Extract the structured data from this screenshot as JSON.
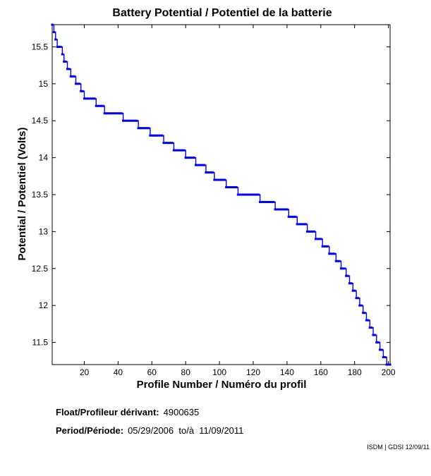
{
  "chart_data": {
    "type": "line",
    "title": "Battery Potential / Potentiel de la batterie",
    "xlabel": "Profile Number / Numéro du profil",
    "ylabel": "Potential / Potentiel (Volts)",
    "xlim": [
      1,
      201
    ],
    "ylim": [
      11.2,
      15.8
    ],
    "xticks": [
      20,
      40,
      60,
      80,
      100,
      120,
      140,
      160,
      180,
      200
    ],
    "yticks": [
      11.5,
      12,
      12.5,
      13,
      13.5,
      14,
      14.5,
      15,
      15.5
    ],
    "grid": false,
    "line_color": "#0000ff",
    "steps": [
      [
        1,
        2,
        15.8
      ],
      [
        2,
        3,
        15.7
      ],
      [
        3,
        4,
        15.6
      ],
      [
        4,
        7,
        15.5
      ],
      [
        7,
        8,
        15.4
      ],
      [
        8,
        10,
        15.3
      ],
      [
        10,
        12,
        15.2
      ],
      [
        12,
        15,
        15.1
      ],
      [
        15,
        18,
        15.0
      ],
      [
        18,
        20,
        14.9
      ],
      [
        20,
        27,
        14.8
      ],
      [
        27,
        32,
        14.7
      ],
      [
        32,
        43,
        14.6
      ],
      [
        43,
        52,
        14.5
      ],
      [
        52,
        59,
        14.4
      ],
      [
        59,
        67,
        14.3
      ],
      [
        67,
        73,
        14.2
      ],
      [
        73,
        80,
        14.1
      ],
      [
        80,
        86,
        14.0
      ],
      [
        86,
        92,
        13.9
      ],
      [
        92,
        97,
        13.8
      ],
      [
        97,
        104,
        13.7
      ],
      [
        104,
        111,
        13.6
      ],
      [
        111,
        124,
        13.5
      ],
      [
        124,
        133,
        13.4
      ],
      [
        133,
        141,
        13.3
      ],
      [
        141,
        146,
        13.2
      ],
      [
        146,
        152,
        13.1
      ],
      [
        152,
        157,
        13.0
      ],
      [
        157,
        161,
        12.9
      ],
      [
        161,
        165,
        12.8
      ],
      [
        165,
        169,
        12.7
      ],
      [
        169,
        172,
        12.6
      ],
      [
        172,
        175,
        12.5
      ],
      [
        175,
        177,
        12.4
      ],
      [
        177,
        179,
        12.3
      ],
      [
        179,
        181,
        12.2
      ],
      [
        181,
        183,
        12.1
      ],
      [
        183,
        185,
        12.0
      ],
      [
        185,
        187,
        11.9
      ],
      [
        187,
        189,
        11.8
      ],
      [
        189,
        191,
        11.7
      ],
      [
        191,
        193,
        11.6
      ],
      [
        193,
        195,
        11.5
      ],
      [
        195,
        197,
        11.4
      ],
      [
        197,
        199,
        11.3
      ],
      [
        199,
        201,
        11.2
      ]
    ]
  },
  "info": {
    "float_label": "Float/Profileur dérivant:",
    "float_value": "4900635",
    "period_label": "Period/Période:",
    "period_value": "05/29/2006  to/à  11/09/2011"
  },
  "credit": "ISDM | GDSI 12/09/11"
}
